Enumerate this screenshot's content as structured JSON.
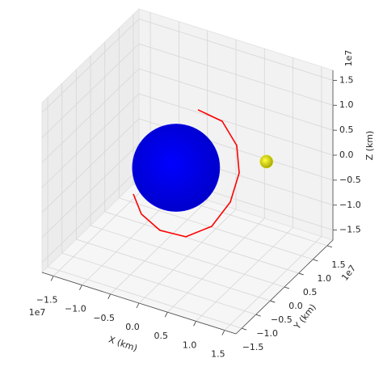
{
  "chart_data": {
    "type": "3d",
    "x_label": "X (km)",
    "y_label": "Y (km)",
    "z_label": "Z (km)",
    "x_offset": "1e7",
    "y_offset": "1e7",
    "z_offset": "1e7",
    "xlim": [
      -17000000,
      17000000
    ],
    "ylim": [
      -17000000,
      17000000
    ],
    "zlim": [
      -17000000,
      17000000
    ],
    "xticks": [
      {
        "value": -15000000,
        "label": "−1.5"
      },
      {
        "value": -10000000,
        "label": "−1.0"
      },
      {
        "value": -5000000,
        "label": "−0.5"
      },
      {
        "value": 0,
        "label": "0.0"
      },
      {
        "value": 5000000,
        "label": "0.5"
      },
      {
        "value": 10000000,
        "label": "1.0"
      },
      {
        "value": 15000000,
        "label": "1.5"
      }
    ],
    "yticks": [
      {
        "value": -15000000,
        "label": "−1.5"
      },
      {
        "value": -10000000,
        "label": "−1.0"
      },
      {
        "value": -5000000,
        "label": "−0.5"
      },
      {
        "value": 0,
        "label": "0.0"
      },
      {
        "value": 5000000,
        "label": "0.5"
      },
      {
        "value": 10000000,
        "label": "1.0"
      },
      {
        "value": 15000000,
        "label": "1.5"
      }
    ],
    "zticks": [
      {
        "value": -15000000,
        "label": "−1.5"
      },
      {
        "value": -10000000,
        "label": "−1.0"
      },
      {
        "value": -5000000,
        "label": "−0.5"
      },
      {
        "value": 0,
        "label": "0.0"
      },
      {
        "value": 5000000,
        "label": "0.5"
      },
      {
        "value": 10000000,
        "label": "1.0"
      },
      {
        "value": 15000000,
        "label": "1.5"
      }
    ],
    "grid": true,
    "orbit": {
      "color": "#ff0000",
      "x": [
        1840000,
        6090000,
        8640000,
        9070000,
        7510000,
        4250000,
        -290000,
        -4820000,
        -8080000,
        -9490000
      ],
      "y": [
        0,
        0,
        0,
        0,
        0,
        0,
        0,
        0,
        0,
        0
      ],
      "z": [
        13000000,
        12240000,
        8300000,
        2960000,
        -3430000,
        -9470000,
        -13210000,
        -13570000,
        -11490000,
        -7970000
      ]
    },
    "spheres": [
      {
        "color": "#0000ff",
        "center": [
          -2000000,
          0,
          0
        ],
        "radius": 8000000
      },
      {
        "color": "#e0e000",
        "center": [
          9100000,
          9500000,
          0
        ],
        "radius": 1200000
      }
    ]
  }
}
